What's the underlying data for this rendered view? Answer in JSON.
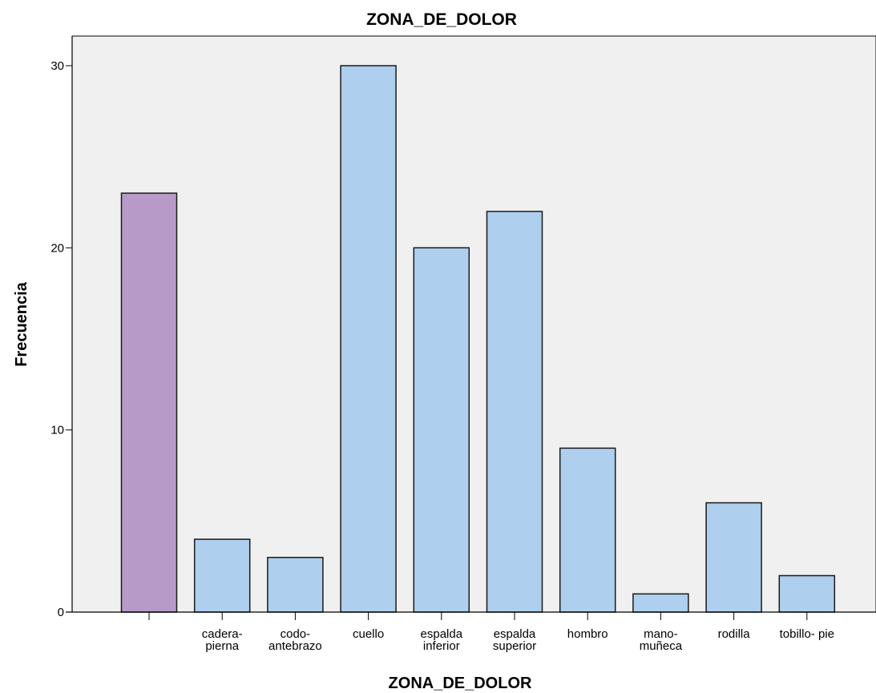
{
  "chart_data": {
    "type": "bar",
    "title": "ZONA_DE_DOLOR",
    "xlabel": "ZONA_DE_DOLOR",
    "ylabel": "Frecuencia",
    "ylim": [
      0,
      30
    ],
    "yticks": [
      0,
      10,
      20,
      30
    ],
    "grid": false,
    "categories": [
      "",
      "cadera-pierna",
      "codo-antebrazo",
      "cuello",
      "espalda inferior",
      "espalda superior",
      "hombro",
      "mano-muñeca",
      "rodilla",
      "tobillo- pie"
    ],
    "category_lines": [
      [
        ""
      ],
      [
        "cadera-",
        "pierna"
      ],
      [
        "codo-",
        "antebrazo"
      ],
      [
        "cuello"
      ],
      [
        "espalda",
        "inferior"
      ],
      [
        "espalda",
        "superior"
      ],
      [
        "hombro"
      ],
      [
        "mano-",
        "muñeca"
      ],
      [
        "rodilla"
      ],
      [
        "tobillo- pie"
      ]
    ],
    "values": [
      23,
      4,
      3,
      30,
      20,
      22,
      9,
      1,
      6,
      2
    ],
    "colors": {
      "plot_background": "#f0f0f0",
      "bar_default": "#aecfee",
      "bar_highlight": "#b79ac8",
      "bar_stroke": "#1a1a1a"
    },
    "highlight_index": 0
  }
}
